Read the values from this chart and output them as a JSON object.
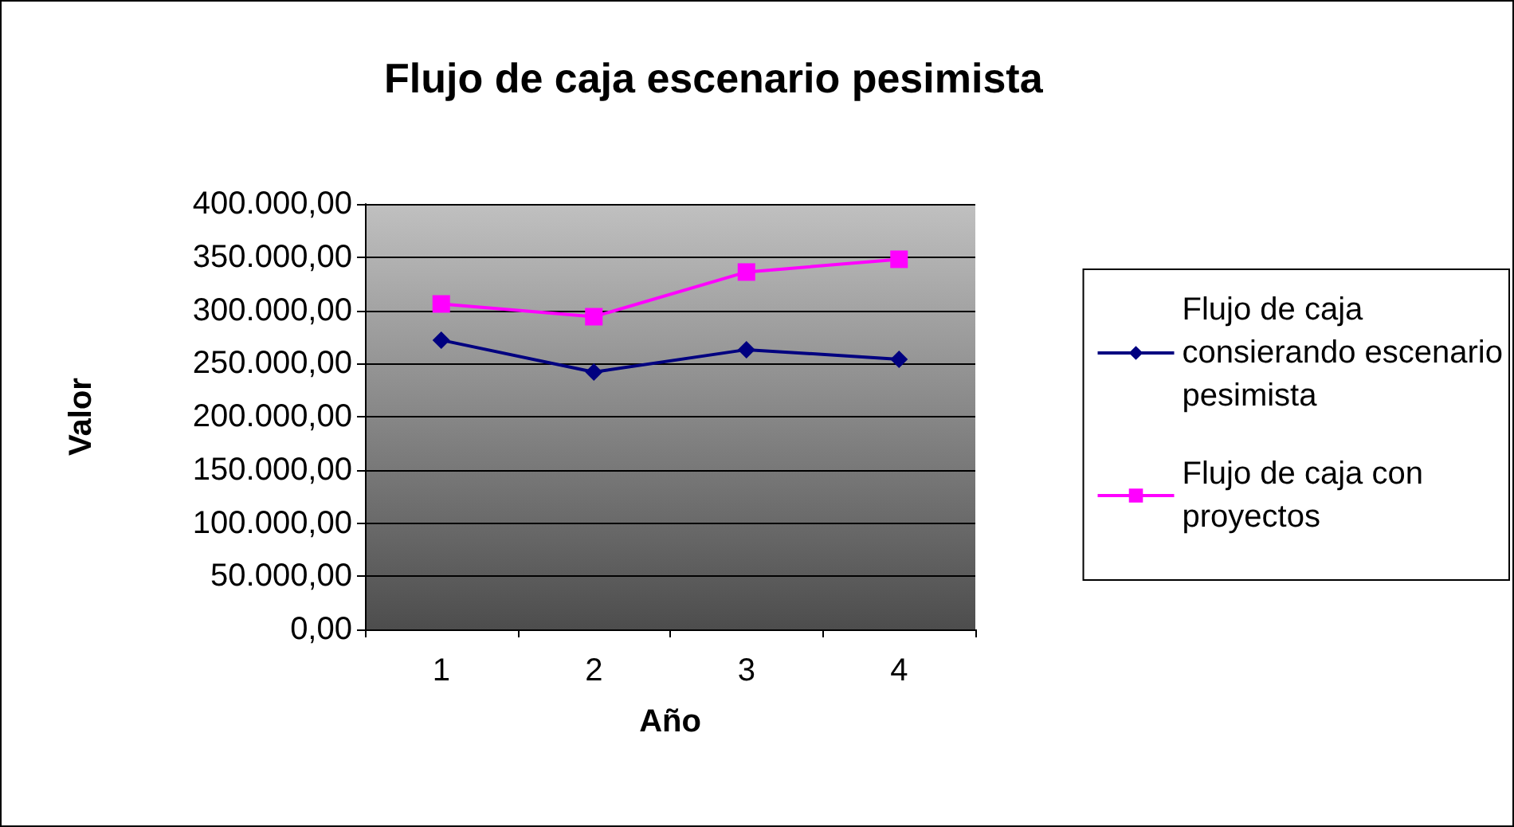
{
  "chart_data": {
    "type": "line",
    "title": "Flujo de caja escenario pesimista",
    "xlabel": "Año",
    "ylabel": "Valor",
    "categories": [
      "1",
      "2",
      "3",
      "4"
    ],
    "series": [
      {
        "name": "Flujo de caja consierando escenario pesimista",
        "color": "#000080",
        "marker": "diamond",
        "values": [
          272000,
          242000,
          263000,
          254000
        ]
      },
      {
        "name": "Flujo de caja con proyectos",
        "color": "#ff00ff",
        "marker": "square",
        "values": [
          306000,
          294000,
          336000,
          348000
        ]
      }
    ],
    "ylim": [
      0,
      400000
    ],
    "yticks": [
      {
        "value": 0,
        "label": "0,00"
      },
      {
        "value": 50000,
        "label": "50.000,00"
      },
      {
        "value": 100000,
        "label": "100.000,00"
      },
      {
        "value": 150000,
        "label": "150.000,00"
      },
      {
        "value": 200000,
        "label": "200.000,00"
      },
      {
        "value": 250000,
        "label": "250.000,00"
      },
      {
        "value": 300000,
        "label": "300.000,00"
      },
      {
        "value": 350000,
        "label": "350.000,00"
      },
      {
        "value": 400000,
        "label": "400.000,00"
      }
    ],
    "grid": "y",
    "legend": "right"
  }
}
